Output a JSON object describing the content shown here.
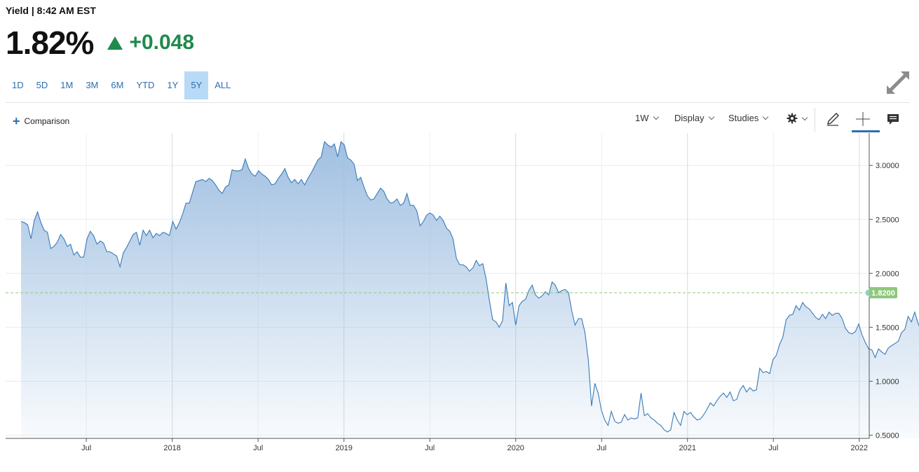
{
  "header": {
    "title": "Yield | 8:42 AM EST",
    "price": "1.82%",
    "change": "+0.048",
    "change_color": "#1f8a4c"
  },
  "ranges": [
    {
      "label": "1D",
      "active": false
    },
    {
      "label": "5D",
      "active": false
    },
    {
      "label": "1M",
      "active": false
    },
    {
      "label": "3M",
      "active": false
    },
    {
      "label": "6M",
      "active": false
    },
    {
      "label": "YTD",
      "active": false
    },
    {
      "label": "1Y",
      "active": false
    },
    {
      "label": "5Y",
      "active": true
    },
    {
      "label": "ALL",
      "active": false
    }
  ],
  "toolbar": {
    "comparison": "Comparison",
    "interval": "1W",
    "display": "Display",
    "studies": "Studies"
  },
  "icons": {
    "expand": "expand-arrows-icon",
    "settings": "gear-icon",
    "draw": "pencil-icon",
    "crosshair": "crosshair-icon",
    "news": "news-icon"
  },
  "chart_data": {
    "type": "area",
    "x_start": 2017.12,
    "x_step_years": 0.0192,
    "values": [
      2.48,
      2.47,
      2.45,
      2.32,
      2.49,
      2.57,
      2.47,
      2.4,
      2.38,
      2.23,
      2.25,
      2.29,
      2.36,
      2.32,
      2.25,
      2.27,
      2.17,
      2.2,
      2.15,
      2.15,
      2.32,
      2.39,
      2.35,
      2.27,
      2.3,
      2.28,
      2.2,
      2.2,
      2.18,
      2.16,
      2.06,
      2.19,
      2.24,
      2.3,
      2.36,
      2.38,
      2.26,
      2.4,
      2.35,
      2.4,
      2.33,
      2.37,
      2.35,
      2.38,
      2.37,
      2.35,
      2.48,
      2.41,
      2.47,
      2.55,
      2.65,
      2.65,
      2.75,
      2.85,
      2.86,
      2.87,
      2.85,
      2.88,
      2.86,
      2.82,
      2.77,
      2.74,
      2.8,
      2.82,
      2.96,
      2.95,
      2.95,
      2.96,
      3.06,
      2.97,
      2.92,
      2.9,
      2.95,
      2.92,
      2.9,
      2.87,
      2.82,
      2.83,
      2.88,
      2.92,
      2.97,
      2.89,
      2.84,
      2.87,
      2.83,
      2.87,
      2.82,
      2.88,
      2.93,
      2.99,
      3.05,
      3.08,
      3.22,
      3.19,
      3.17,
      3.2,
      3.08,
      3.22,
      3.19,
      3.07,
      3.05,
      3.01,
      2.86,
      2.89,
      2.8,
      2.72,
      2.68,
      2.69,
      2.74,
      2.79,
      2.76,
      2.69,
      2.65,
      2.66,
      2.69,
      2.63,
      2.65,
      2.74,
      2.63,
      2.63,
      2.58,
      2.44,
      2.48,
      2.54,
      2.56,
      2.54,
      2.49,
      2.53,
      2.49,
      2.42,
      2.39,
      2.32,
      2.14,
      2.08,
      2.08,
      2.06,
      2.02,
      2.05,
      2.12,
      2.07,
      2.09,
      1.95,
      1.75,
      1.57,
      1.55,
      1.5,
      1.56,
      1.91,
      1.7,
      1.73,
      1.52,
      1.7,
      1.74,
      1.76,
      1.84,
      1.89,
      1.8,
      1.77,
      1.79,
      1.83,
      1.8,
      1.92,
      1.89,
      1.82,
      1.84,
      1.85,
      1.82,
      1.65,
      1.52,
      1.58,
      1.58,
      1.45,
      1.2,
      0.77,
      0.98,
      0.89,
      0.73,
      0.64,
      0.59,
      0.72,
      0.63,
      0.61,
      0.62,
      0.69,
      0.64,
      0.66,
      0.65,
      0.66,
      0.89,
      0.68,
      0.7,
      0.66,
      0.64,
      0.61,
      0.59,
      0.55,
      0.53,
      0.55,
      0.71,
      0.64,
      0.59,
      0.72,
      0.69,
      0.71,
      0.67,
      0.64,
      0.65,
      0.69,
      0.74,
      0.8,
      0.77,
      0.82,
      0.86,
      0.89,
      0.85,
      0.9,
      0.82,
      0.83,
      0.92,
      0.96,
      0.9,
      0.94,
      0.91,
      0.92,
      1.12,
      1.08,
      1.09,
      1.07,
      1.2,
      1.24,
      1.34,
      1.41,
      1.57,
      1.61,
      1.62,
      1.7,
      1.66,
      1.73,
      1.69,
      1.67,
      1.63,
      1.59,
      1.57,
      1.62,
      1.58,
      1.64,
      1.61,
      1.63,
      1.63,
      1.58,
      1.49,
      1.45,
      1.44,
      1.46,
      1.53,
      1.43,
      1.36,
      1.3,
      1.29,
      1.22,
      1.3,
      1.27,
      1.25,
      1.31,
      1.33,
      1.35,
      1.37,
      1.45,
      1.48,
      1.6,
      1.55,
      1.64,
      1.54,
      1.46,
      1.57,
      1.53,
      1.49,
      1.35,
      1.47,
      1.4,
      1.52,
      1.49,
      1.63,
      1.79,
      1.82,
      1.82
    ],
    "x_ticks": [
      "Jul",
      "2018",
      "Jul",
      "2019",
      "Jul",
      "2020",
      "Jul",
      "2021",
      "Jul",
      "2022"
    ],
    "x_tick_positions": [
      2017.5,
      2018.0,
      2018.5,
      2019.0,
      2019.5,
      2020.0,
      2020.5,
      2021.0,
      2021.5,
      2022.0
    ],
    "y_ticks": [
      "0.5000",
      "1.0000",
      "1.5000",
      "2.0000",
      "2.5000",
      "3.0000"
    ],
    "y_tick_values": [
      0.5,
      1.0,
      1.5,
      2.0,
      2.5,
      3.0
    ],
    "xlim": [
      2017.03,
      2022.05
    ],
    "ylim": [
      0.47,
      3.3
    ],
    "last_value_label": "1.8200",
    "last_value": 1.82,
    "line_color": "#3a7ab8",
    "fill_color": "#9cbde0",
    "reference_color": "#8fc77a",
    "grid": true
  }
}
